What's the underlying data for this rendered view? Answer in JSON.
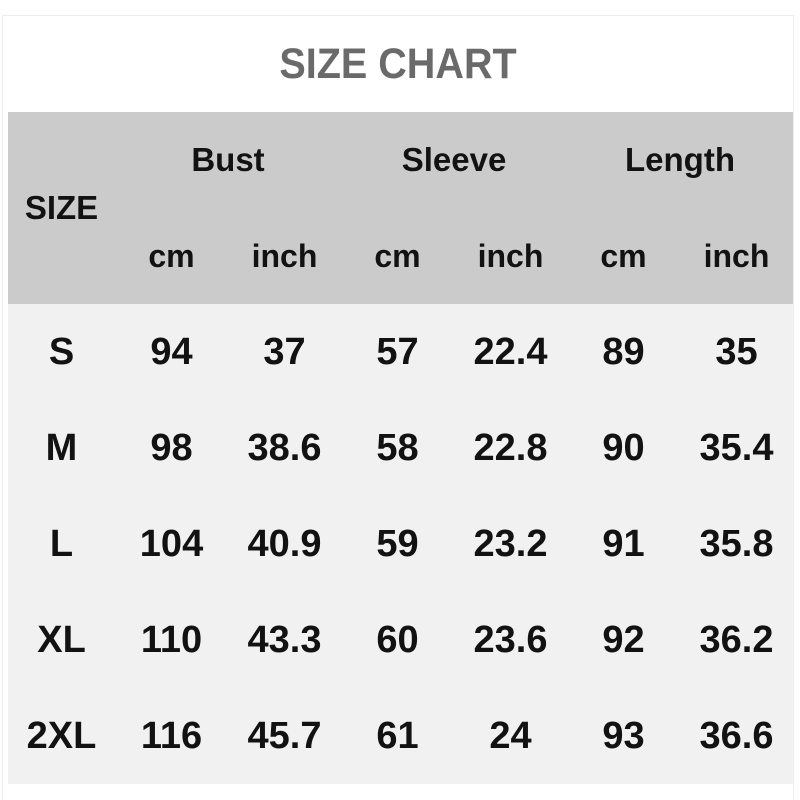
{
  "title": "SIZE CHART",
  "colors": {
    "header_bg": "#cbcbcb",
    "body_bg": "#f1f1f1",
    "title_color": "#6a6a6a",
    "text_color": "#121212",
    "page_bg": "#ffffff"
  },
  "table": {
    "size_header": "SIZE",
    "group_headers": [
      "Bust",
      "Sleeve",
      "Length"
    ],
    "unit_headers": [
      "cm",
      "inch",
      "cm",
      "inch",
      "cm",
      "inch"
    ],
    "rows": [
      {
        "size": "S",
        "values": [
          "94",
          "37",
          "57",
          "22.4",
          "89",
          "35"
        ]
      },
      {
        "size": "M",
        "values": [
          "98",
          "38.6",
          "58",
          "22.8",
          "90",
          "35.4"
        ]
      },
      {
        "size": "L",
        "values": [
          "104",
          "40.9",
          "59",
          "23.2",
          "91",
          "35.8"
        ]
      },
      {
        "size": "XL",
        "values": [
          "110",
          "43.3",
          "60",
          "23.6",
          "92",
          "36.2"
        ]
      },
      {
        "size": "2XL",
        "values": [
          "116",
          "45.7",
          "61",
          "24",
          "93",
          "36.6"
        ]
      }
    ]
  },
  "chart_data": {
    "type": "table",
    "title": "SIZE CHART",
    "columns": [
      "SIZE",
      "Bust cm",
      "Bust inch",
      "Sleeve cm",
      "Sleeve inch",
      "Length cm",
      "Length inch"
    ],
    "rows": [
      [
        "S",
        94,
        37,
        57,
        22.4,
        89,
        35
      ],
      [
        "M",
        98,
        38.6,
        58,
        22.8,
        90,
        35.4
      ],
      [
        "L",
        104,
        40.9,
        59,
        23.2,
        91,
        35.8
      ],
      [
        "XL",
        110,
        43.3,
        60,
        23.6,
        92,
        36.2
      ],
      [
        "2XL",
        116,
        45.7,
        61,
        24,
        93,
        36.6
      ]
    ]
  }
}
